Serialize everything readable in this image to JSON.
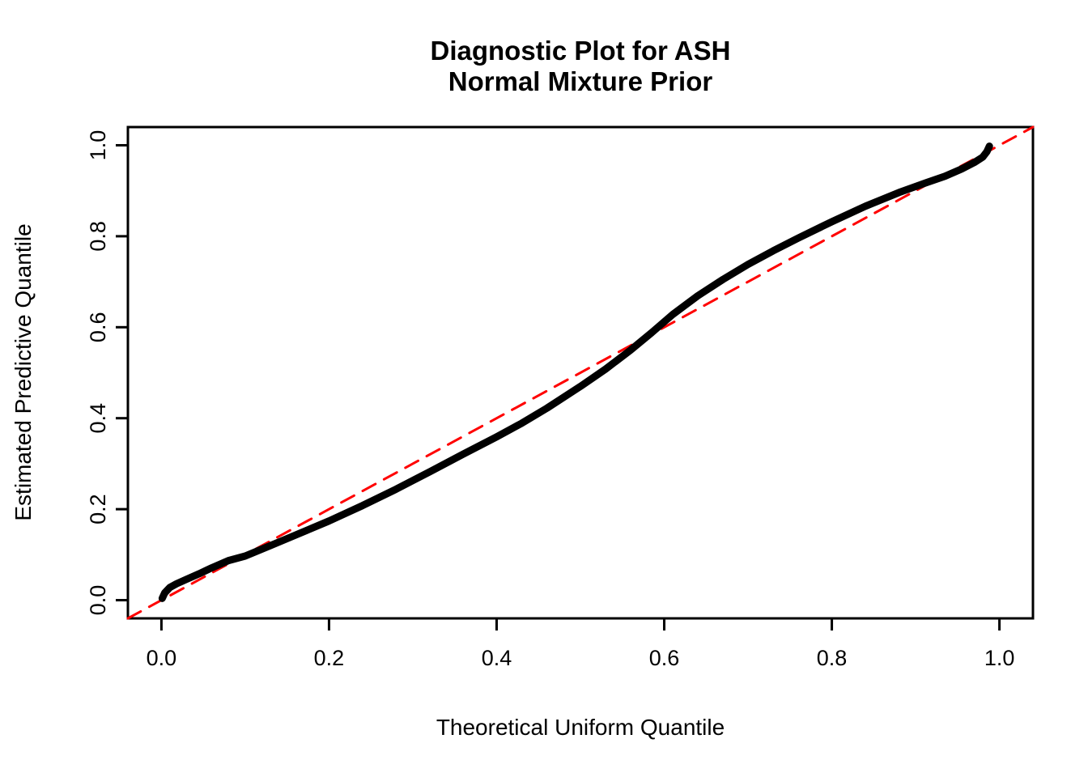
{
  "figure": {
    "background": "#ffffff"
  },
  "chart_data": {
    "type": "line",
    "title": "Diagnostic Plot for ASH Normal Mixture Prior",
    "title_lines": [
      "Diagnostic Plot for ASH",
      "Normal Mixture Prior"
    ],
    "xlabel": "Theoretical Uniform Quantile",
    "ylabel": "Estimated Predictive Quantile",
    "xlim": [
      -0.04,
      1.04
    ],
    "ylim": [
      -0.04,
      1.04
    ],
    "grid": false,
    "legend": "none",
    "x_ticks": [
      0.0,
      0.2,
      0.4,
      0.6,
      0.8,
      1.0
    ],
    "x_tick_labels": [
      "0.0",
      "0.2",
      "0.4",
      "0.6",
      "0.8",
      "1.0"
    ],
    "y_ticks": [
      0.0,
      0.2,
      0.4,
      0.6,
      0.8,
      1.0
    ],
    "y_tick_labels": [
      "0.0",
      "0.2",
      "0.4",
      "0.6",
      "0.8",
      "1.0"
    ],
    "colors": {
      "curve": "#000000",
      "reference_line": "#FF0000",
      "axis": "#000000"
    },
    "series": [
      {
        "name": "estimated-predictive-quantile-curve",
        "style": "solid-thick",
        "color": "#000000",
        "points": [
          [
            0.001,
            0.004
          ],
          [
            0.004,
            0.016
          ],
          [
            0.01,
            0.028
          ],
          [
            0.018,
            0.036
          ],
          [
            0.03,
            0.046
          ],
          [
            0.045,
            0.058
          ],
          [
            0.06,
            0.071
          ],
          [
            0.08,
            0.087
          ],
          [
            0.1,
            0.097
          ],
          [
            0.13,
            0.12
          ],
          [
            0.16,
            0.143
          ],
          [
            0.2,
            0.174
          ],
          [
            0.24,
            0.208
          ],
          [
            0.28,
            0.244
          ],
          [
            0.32,
            0.282
          ],
          [
            0.36,
            0.321
          ],
          [
            0.4,
            0.359
          ],
          [
            0.43,
            0.389
          ],
          [
            0.46,
            0.422
          ],
          [
            0.5,
            0.47
          ],
          [
            0.53,
            0.508
          ],
          [
            0.56,
            0.55
          ],
          [
            0.585,
            0.588
          ],
          [
            0.61,
            0.628
          ],
          [
            0.64,
            0.669
          ],
          [
            0.67,
            0.705
          ],
          [
            0.7,
            0.738
          ],
          [
            0.73,
            0.768
          ],
          [
            0.76,
            0.796
          ],
          [
            0.8,
            0.832
          ],
          [
            0.84,
            0.866
          ],
          [
            0.88,
            0.896
          ],
          [
            0.91,
            0.916
          ],
          [
            0.935,
            0.932
          ],
          [
            0.955,
            0.948
          ],
          [
            0.97,
            0.962
          ],
          [
            0.98,
            0.974
          ],
          [
            0.985,
            0.986
          ],
          [
            0.988,
            0.998
          ]
        ]
      },
      {
        "name": "identity-reference-line",
        "style": "dashed",
        "color": "#FF0000",
        "points": [
          [
            -0.04,
            -0.04
          ],
          [
            1.04,
            1.04
          ]
        ]
      }
    ]
  }
}
